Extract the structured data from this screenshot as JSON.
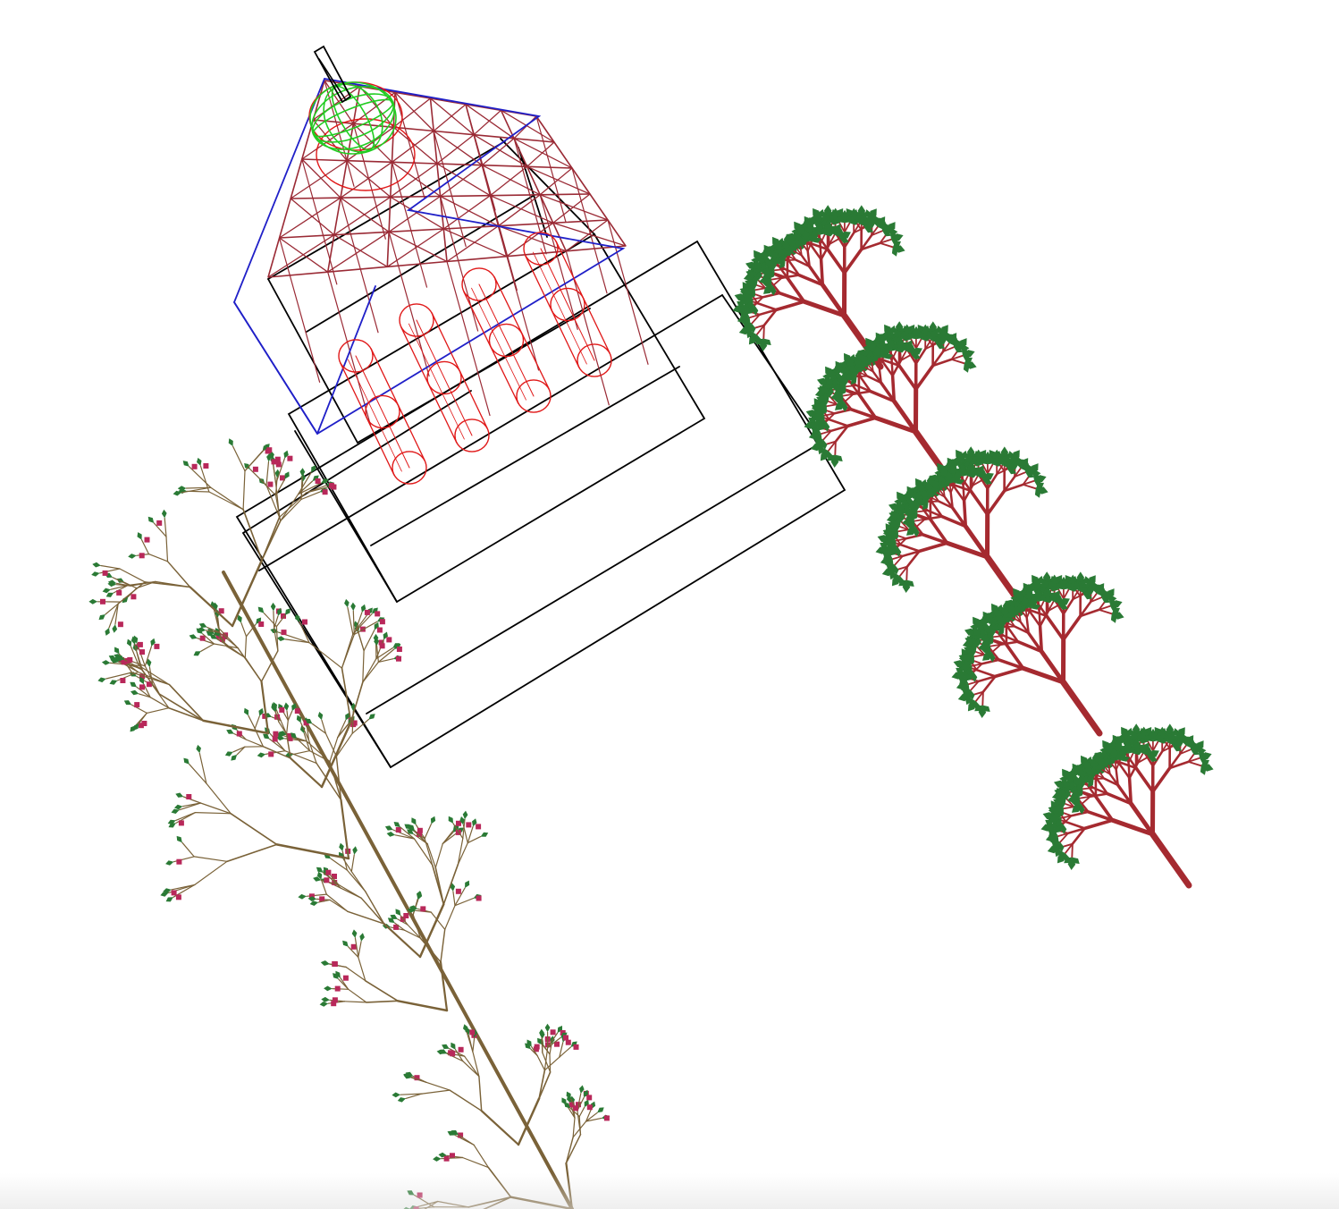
{
  "scene": {
    "background": "#ffffff",
    "colors": {
      "greenhouse_outline": "#000000",
      "roof_truss": "#9a2a35",
      "roof_frame": "#2020c8",
      "pillar_outline": "#e01818",
      "globe": "#22cc22",
      "right_tree_branch": "#a52a30",
      "right_tree_leaf": "#2a7a35",
      "left_tree_branch": "#7a6238",
      "left_tree_leaf": "#2a7a35",
      "left_tree_blossom": "#b8285a"
    },
    "objects": [
      "wireframe-greenhouse",
      "roof-truss-grid",
      "cylinder-pillars",
      "wireframe-globe",
      "chimney",
      "fractal-tree-row",
      "blossom-tree"
    ]
  }
}
